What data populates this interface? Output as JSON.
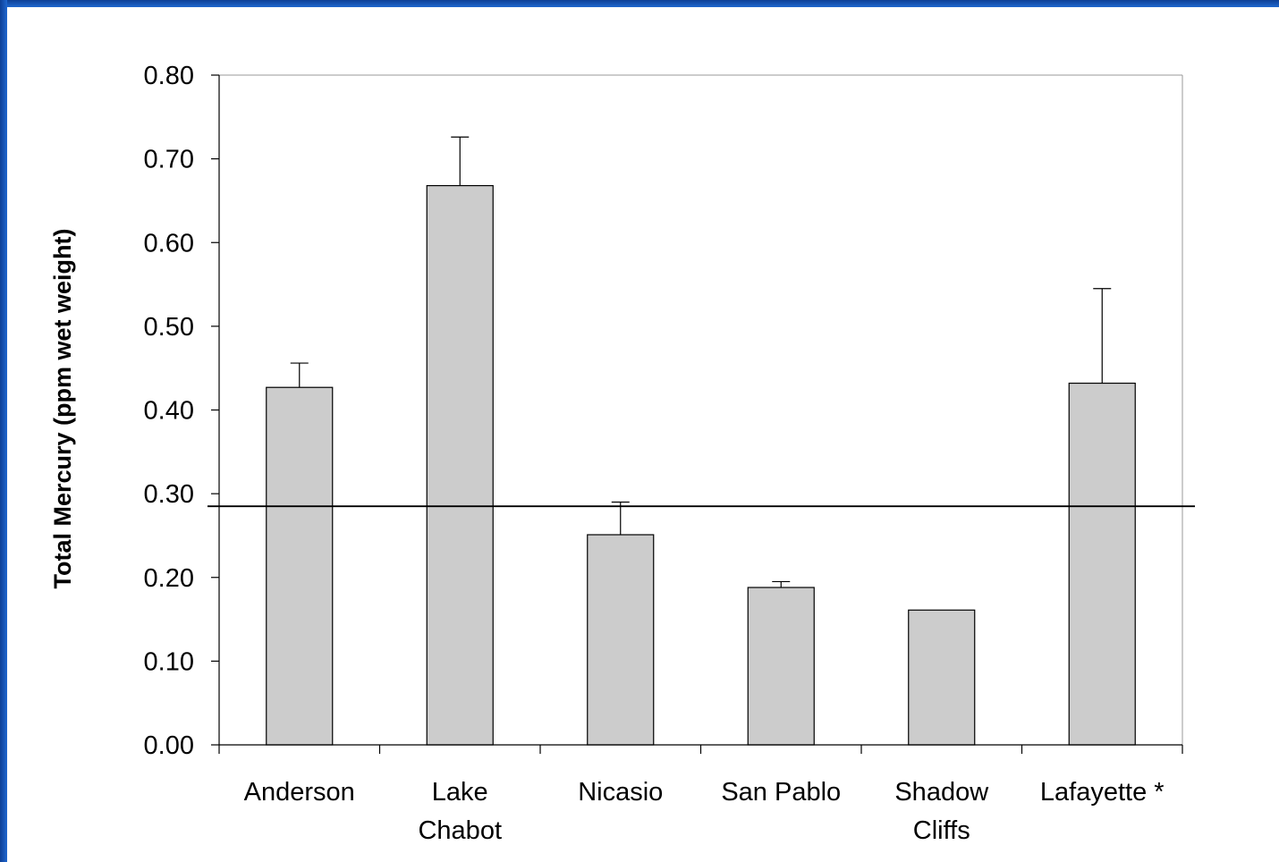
{
  "colors": {
    "frame": "#1a5fc4",
    "bar_fill": "#cccccc",
    "bar_stroke": "#000000",
    "background": "#ffffff"
  },
  "chart_data": {
    "type": "bar",
    "title": "",
    "xlabel": "",
    "ylabel": "Total Mercury (ppm wet weight)",
    "ylim": [
      0,
      0.8
    ],
    "yticks": [
      "0.00",
      "0.10",
      "0.20",
      "0.30",
      "0.40",
      "0.50",
      "0.60",
      "0.70",
      "0.80"
    ],
    "categories": [
      [
        "Anderson"
      ],
      [
        "Lake",
        "Chabot"
      ],
      [
        "Nicasio"
      ],
      [
        "San Pablo"
      ],
      [
        "Shadow",
        "Cliffs"
      ],
      [
        "Lafayette *"
      ]
    ],
    "values": [
      0.427,
      0.668,
      0.251,
      0.188,
      0.161,
      0.432
    ],
    "error_upper": [
      0.029,
      0.058,
      0.039,
      0.007,
      0.0,
      0.113
    ],
    "reference_line": 0.285,
    "grid": false,
    "legend": "none"
  }
}
